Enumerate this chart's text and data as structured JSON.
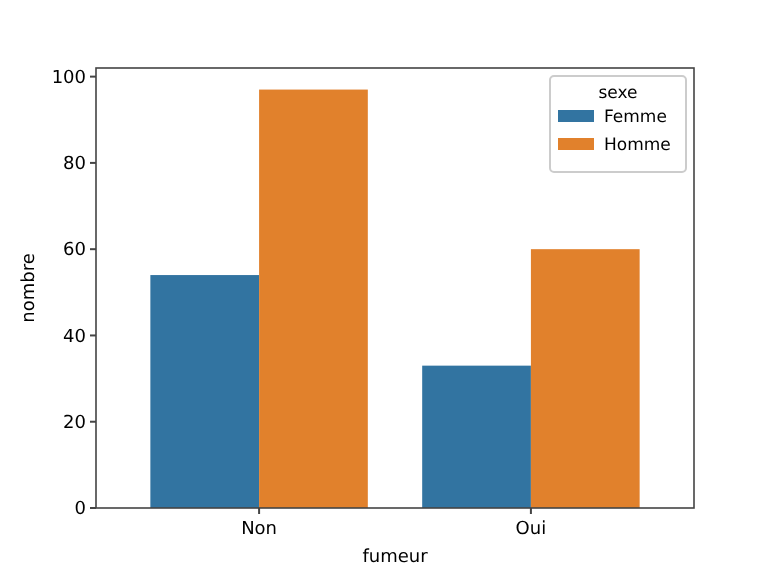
{
  "chart_data": {
    "type": "bar",
    "xlabel": "fumeur",
    "ylabel": "nombre",
    "legend_title": "sexe",
    "categories": [
      "Non",
      "Oui"
    ],
    "series": [
      {
        "name": "Femme",
        "color": "#3274a1",
        "values": [
          54,
          33
        ]
      },
      {
        "name": "Homme",
        "color": "#e1812c",
        "values": [
          97,
          60
        ]
      }
    ],
    "ylim": [
      0,
      102
    ],
    "yticks": [
      0,
      20,
      40,
      60,
      80,
      100
    ],
    "legend": "top right"
  }
}
